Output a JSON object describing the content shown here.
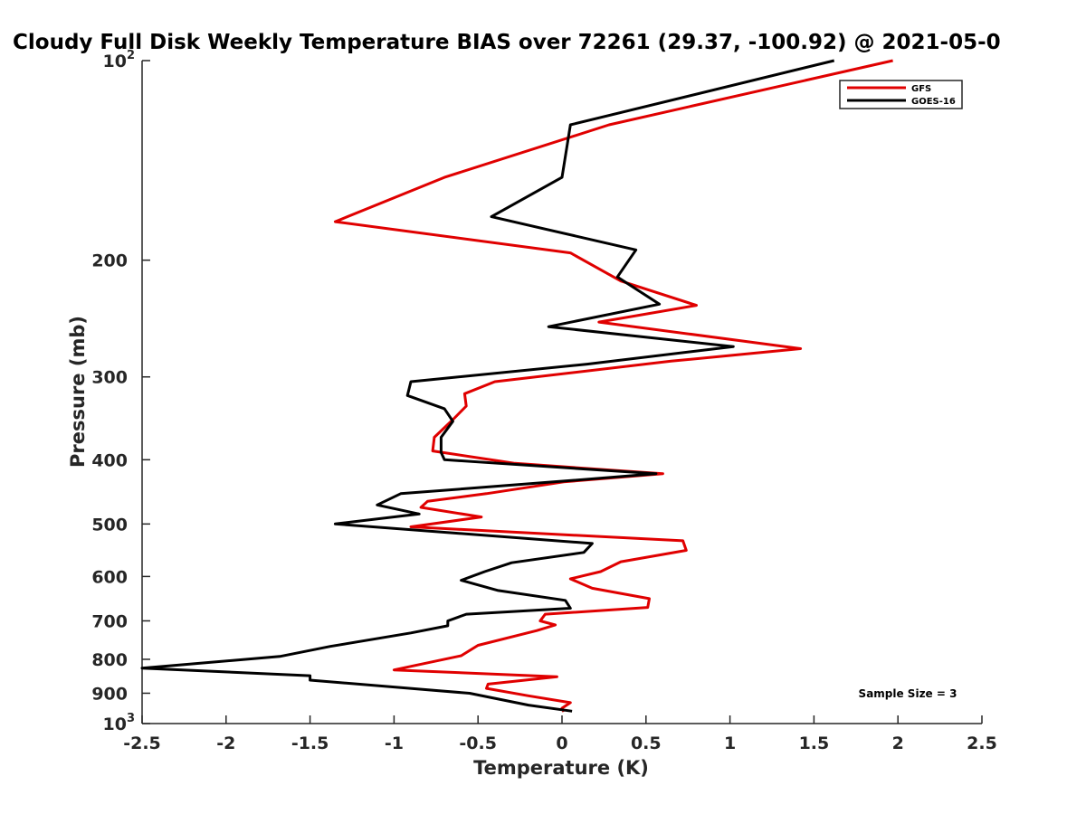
{
  "chart_data": {
    "type": "line",
    "title": "Cloudy Full Disk Weekly Temperature BIAS over 72261 (29.37, -100.92) @ 2021-05-0",
    "xlabel": "Temperature (K)",
    "ylabel": "Pressure (mb)",
    "xlim": [
      -2.5,
      2.5
    ],
    "ylim": [
      100,
      1000
    ],
    "yscale": "log",
    "y_reversed": true,
    "x_ticks": [
      "-2.5",
      "-2",
      "-1.5",
      "-1",
      "-0.5",
      "0",
      "0.5",
      "1",
      "1.5",
      "2",
      "2.5"
    ],
    "x_tick_values": [
      -2.5,
      -2,
      -1.5,
      -1,
      -0.5,
      0,
      0.5,
      1,
      1.5,
      2,
      2.5
    ],
    "y_ticks": [
      {
        "value": 100,
        "base": "10",
        "exp": "2"
      },
      {
        "value": 200,
        "label": "200"
      },
      {
        "value": 300,
        "label": "300"
      },
      {
        "value": 400,
        "label": "400"
      },
      {
        "value": 500,
        "label": "500"
      },
      {
        "value": 600,
        "label": "600"
      },
      {
        "value": 700,
        "label": "700"
      },
      {
        "value": 800,
        "label": "800"
      },
      {
        "value": 900,
        "label": "900"
      },
      {
        "value": 1000,
        "base": "10",
        "exp": "3"
      }
    ],
    "legend_position": "top-right",
    "annotation": "Sample Size = 3",
    "series": [
      {
        "name": "GFS",
        "color": "#e00000",
        "points": [
          [
            1.97,
            100
          ],
          [
            0.28,
            125
          ],
          [
            -0.7,
            150
          ],
          [
            -1.35,
            175
          ],
          [
            0.05,
            195
          ],
          [
            0.35,
            215
          ],
          [
            0.8,
            234
          ],
          [
            0.22,
            248
          ],
          [
            1.42,
            272
          ],
          [
            0.65,
            284
          ],
          [
            -0.4,
            305
          ],
          [
            -0.58,
            318
          ],
          [
            -0.57,
            332
          ],
          [
            -0.65,
            348
          ],
          [
            -0.76,
            370
          ],
          [
            -0.77,
            388
          ],
          [
            -0.28,
            405
          ],
          [
            0.6,
            420
          ],
          [
            0.01,
            432
          ],
          [
            -0.45,
            450
          ],
          [
            -0.8,
            462
          ],
          [
            -0.84,
            472
          ],
          [
            -0.48,
            488
          ],
          [
            -0.9,
            505
          ],
          [
            0.72,
            530
          ],
          [
            0.74,
            548
          ],
          [
            0.35,
            570
          ],
          [
            0.23,
            590
          ],
          [
            0.05,
            605
          ],
          [
            0.18,
            625
          ],
          [
            0.52,
            648
          ],
          [
            0.51,
            668
          ],
          [
            -0.1,
            684
          ],
          [
            -0.13,
            700
          ],
          [
            -0.04,
            710
          ],
          [
            -0.15,
            724
          ],
          [
            -0.5,
            762
          ],
          [
            -0.6,
            790
          ],
          [
            -1.0,
            830
          ],
          [
            -0.03,
            850
          ],
          [
            -0.44,
            872
          ],
          [
            -0.45,
            885
          ],
          [
            -0.2,
            908
          ],
          [
            0.05,
            930
          ],
          [
            0.0,
            948
          ],
          [
            0.01,
            960
          ]
        ]
      },
      {
        "name": "GOES-16",
        "color": "#000000",
        "points": [
          [
            1.62,
            100
          ],
          [
            0.05,
            125
          ],
          [
            0.0,
            150
          ],
          [
            -0.42,
            172
          ],
          [
            0.44,
            193
          ],
          [
            0.33,
            212
          ],
          [
            0.58,
            233
          ],
          [
            -0.08,
            252
          ],
          [
            1.02,
            270
          ],
          [
            0.15,
            287
          ],
          [
            -0.9,
            305
          ],
          [
            -0.92,
            320
          ],
          [
            -0.7,
            335
          ],
          [
            -0.65,
            350
          ],
          [
            -0.72,
            370
          ],
          [
            -0.72,
            390
          ],
          [
            -0.7,
            400
          ],
          [
            0.56,
            420
          ],
          [
            -0.05,
            432
          ],
          [
            -0.96,
            450
          ],
          [
            -1.1,
            468
          ],
          [
            -0.85,
            483
          ],
          [
            -1.35,
            500
          ],
          [
            0.18,
            535
          ],
          [
            0.13,
            552
          ],
          [
            -0.3,
            572
          ],
          [
            -0.46,
            590
          ],
          [
            -0.6,
            608
          ],
          [
            -0.38,
            630
          ],
          [
            0.02,
            652
          ],
          [
            0.05,
            670
          ],
          [
            -0.57,
            684
          ],
          [
            -0.68,
            700
          ],
          [
            -0.68,
            712
          ],
          [
            -0.9,
            730
          ],
          [
            -1.38,
            765
          ],
          [
            -1.68,
            792
          ],
          [
            -2.5,
            825
          ],
          [
            -1.5,
            847
          ],
          [
            -1.5,
            860
          ],
          [
            -0.55,
            900
          ],
          [
            -0.2,
            938
          ],
          [
            0.06,
            958
          ]
        ]
      }
    ]
  }
}
